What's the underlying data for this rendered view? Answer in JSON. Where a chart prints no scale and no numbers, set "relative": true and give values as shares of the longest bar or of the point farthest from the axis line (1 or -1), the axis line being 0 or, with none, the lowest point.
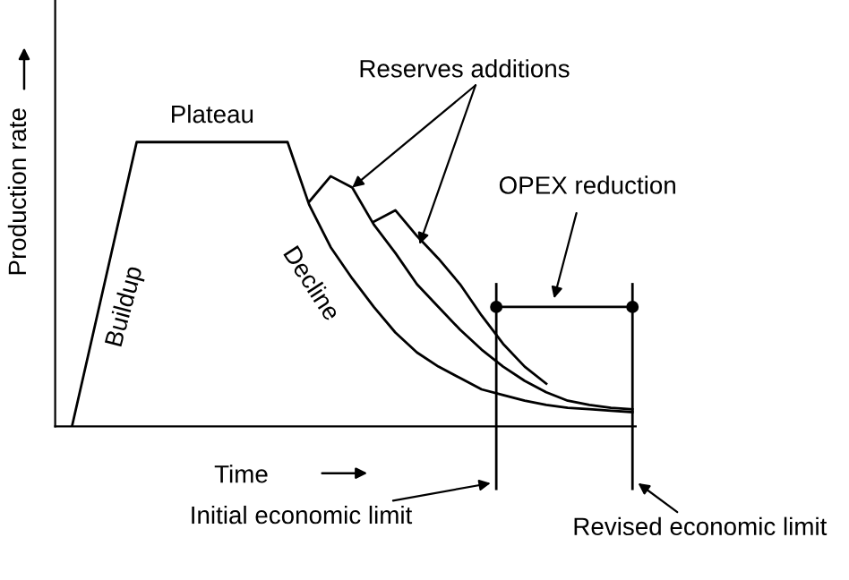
{
  "chart_data": {
    "type": "line",
    "relative": true,
    "xlabel": "Time",
    "ylabel": "Production rate",
    "categories": [
      null,
      null,
      null,
      null,
      null,
      null,
      null,
      null,
      null,
      null,
      null,
      null,
      null,
      null,
      null,
      null,
      null,
      null,
      null,
      null,
      null,
      null,
      null,
      null,
      null,
      null,
      null
    ],
    "series": [
      {
        "color": "#000000",
        "values": [
          0,
          0.333,
          0.667,
          1,
          1,
          1,
          1,
          1,
          1,
          1,
          1,
          0.78,
          0.63,
          0.52,
          0.42,
          0.33,
          0.26,
          0.21,
          0.17,
          0.13,
          0.11,
          0.09,
          0.075,
          0.065,
          0.06,
          0.055,
          0.05
        ]
      },
      {
        "color": "#000000",
        "values": [
          null,
          null,
          null,
          null,
          null,
          null,
          null,
          null,
          null,
          null,
          null,
          0.79,
          0.88,
          0.84,
          0.71,
          0.61,
          0.5,
          0.42,
          0.34,
          0.27,
          0.21,
          0.16,
          0.12,
          0.09,
          0.075,
          0.065,
          0.06
        ]
      },
      {
        "color": "#000000",
        "values": [
          null,
          null,
          null,
          null,
          null,
          null,
          null,
          null,
          null,
          null,
          null,
          null,
          null,
          null,
          0.72,
          0.76,
          0.67,
          0.59,
          0.5,
          0.39,
          0.29,
          0.21,
          0.15,
          null,
          null,
          null,
          null
        ]
      }
    ],
    "annotations": [
      "Plateau",
      "Buildup",
      "Decline",
      "Reserves additions",
      "OPEX reduction",
      "Initial economic limit",
      "Revised economic limit"
    ],
    "grid": false,
    "legend": false,
    "marker": "none",
    "line_style": "solid"
  }
}
